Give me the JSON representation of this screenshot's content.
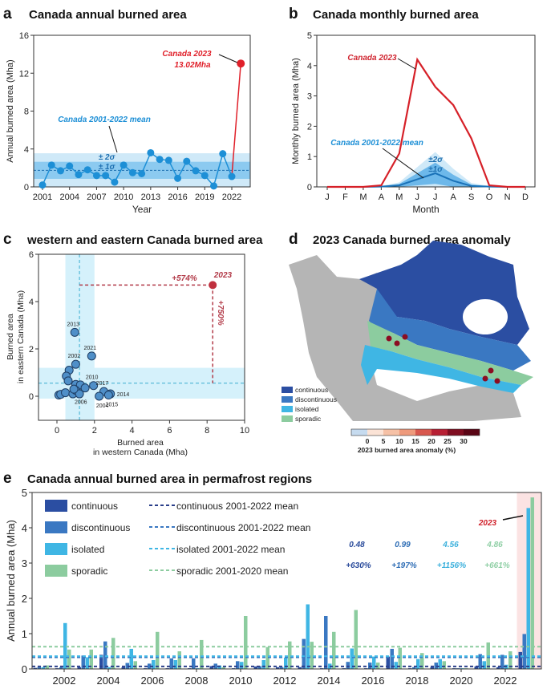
{
  "colors": {
    "red": "#e0202a",
    "blue": "#1d8fd6",
    "darkred": "#b23a48",
    "continuous": "#2b4ea2",
    "discontinuous": "#3a78c2",
    "isolated": "#3fb6e4",
    "sporadic": "#8ccc9f",
    "land": "#b5b5b5"
  },
  "panel_a": {
    "letter": "a",
    "title": "Canada annual burned area",
    "ann_2023": "Canada 2023",
    "ann_value": "13.02Mha",
    "ann_mean": "Canada 2001-2022 mean",
    "ann_2s": "± 2σ",
    "ann_1s": "± 1σ"
  },
  "panel_b": {
    "letter": "b",
    "title": "Canada monthly burned area",
    "ann_2023": "Canada 2023",
    "ann_mean": "Canada 2001-2022 mean",
    "ann_2s": "±2σ",
    "ann_1s": "±1σ"
  },
  "panel_c": {
    "letter": "c",
    "title": "western and eastern Canada burned area",
    "ann_x": "+574%",
    "ann_y": "+750%",
    "ann_2023": "2023"
  },
  "panel_d": {
    "letter": "d",
    "title": "2023 Canada burned area anomaly",
    "legend": [
      "continuous",
      "discontinuous",
      "isolated",
      "sporadic"
    ],
    "colorbar_label": "2023 burned area anomaly (%)",
    "colorbar_ticks": [
      "0",
      "5",
      "10",
      "15",
      "20",
      "25",
      "30"
    ],
    "colorbar_colors": [
      "#c6dbef",
      "#fbe3d6",
      "#f6c1a6",
      "#ee9a7c",
      "#d8574e",
      "#b71f33",
      "#7f0d20",
      "#5a0515"
    ]
  },
  "panel_e": {
    "letter": "e",
    "title": "Canada annual burned area in permafrost regions",
    "tag_2023": "2023",
    "highlight": [
      {
        "value": "0.48",
        "pct": "+630%"
      },
      {
        "value": "0.99",
        "pct": "+197%"
      },
      {
        "value": "4.56",
        "pct": "+1156%"
      },
      {
        "value": "4.86",
        "pct": "+661%"
      }
    ]
  },
  "chart_data": [
    {
      "type": "line",
      "title": "Canada annual burned area",
      "xlabel": "Year",
      "ylabel": "Annual burned area (Mha)",
      "ylim": [
        0,
        16
      ],
      "yticks": [
        "0",
        "4",
        "8",
        "12",
        "16"
      ],
      "xticks": [
        "2001",
        "2004",
        "2007",
        "2010",
        "2013",
        "2016",
        "2019",
        "2022"
      ],
      "x": [
        2001,
        2002,
        2003,
        2004,
        2005,
        2006,
        2007,
        2008,
        2009,
        2010,
        2011,
        2012,
        2013,
        2014,
        2015,
        2016,
        2017,
        2018,
        2019,
        2020,
        2021,
        2022,
        2023
      ],
      "values": [
        0.2,
        2.3,
        1.7,
        2.2,
        1.3,
        1.8,
        1.2,
        1.2,
        0.5,
        2.3,
        1.5,
        1.4,
        3.6,
        2.9,
        2.8,
        0.9,
        2.7,
        1.7,
        1.2,
        0.1,
        3.5,
        1.1,
        13.02
      ],
      "mean": 1.75,
      "sigma": 0.9
    },
    {
      "type": "line",
      "title": "Canada monthly burned area",
      "xlabel": "Month",
      "ylabel": "Monthly burned area (Mha)",
      "ylim": [
        0,
        5
      ],
      "yticks": [
        "0",
        "1",
        "2",
        "3",
        "4",
        "5"
      ],
      "categories": [
        "J",
        "F",
        "M",
        "A",
        "M",
        "J",
        "J",
        "A",
        "S",
        "O",
        "N",
        "D"
      ],
      "series": [
        {
          "name": "Canada 2023",
          "values": [
            0,
            0,
            0,
            0.05,
            1.1,
            4.2,
            3.3,
            2.7,
            1.6,
            0.05,
            0,
            0
          ]
        },
        {
          "name": "Canada 2001-2022 mean",
          "values": [
            0,
            0,
            0,
            0.01,
            0.05,
            0.25,
            0.45,
            0.2,
            0.03,
            0.01,
            0,
            0
          ],
          "sigma": [
            0,
            0,
            0,
            0.01,
            0.05,
            0.2,
            0.35,
            0.2,
            0.05,
            0.01,
            0,
            0
          ]
        }
      ]
    },
    {
      "type": "scatter",
      "title": "western and eastern Canada burned area",
      "xlabel": "Burned area in western Canada (Mha)",
      "ylabel": "Burned area in eastern Canada (Mha)",
      "xlim": [
        -1,
        10
      ],
      "ylim": [
        -1,
        6
      ],
      "xticks": [
        "0",
        "2",
        "4",
        "6",
        "8",
        "10"
      ],
      "yticks": [
        "0",
        "2",
        "4",
        "6"
      ],
      "points": [
        {
          "x": 0.95,
          "y": 2.7,
          "label": "2013"
        },
        {
          "x": 1.85,
          "y": 1.7,
          "label": "2021"
        },
        {
          "x": 1.0,
          "y": 1.35,
          "label": "2002"
        },
        {
          "x": 0.65,
          "y": 1.1
        },
        {
          "x": 0.5,
          "y": 0.85
        },
        {
          "x": 0.6,
          "y": 0.65
        },
        {
          "x": 1.0,
          "y": 0.5
        },
        {
          "x": 1.95,
          "y": 0.45,
          "label": "2010"
        },
        {
          "x": 1.25,
          "y": 0.48
        },
        {
          "x": 1.5,
          "y": 0.35
        },
        {
          "x": 2.5,
          "y": 0.2,
          "label": "2017"
        },
        {
          "x": 2.85,
          "y": 0.1,
          "label": "2014"
        },
        {
          "x": 2.25,
          "y": 0.0,
          "label": "2004"
        },
        {
          "x": 2.75,
          "y": 0.05,
          "label": "2015"
        },
        {
          "x": 1.1,
          "y": 0.15,
          "label": "2006"
        },
        {
          "x": 0.1,
          "y": 0.05
        },
        {
          "x": 0.2,
          "y": 0.08
        },
        {
          "x": 0.45,
          "y": 0.15
        },
        {
          "x": 0.85,
          "y": 0.1
        },
        {
          "x": 1.0,
          "y": 0.25
        },
        {
          "x": 1.2,
          "y": 0.1
        },
        {
          "x": 0.9,
          "y": 0.3
        }
      ],
      "point_2023": {
        "x": 8.3,
        "y": 4.7,
        "label": "2023"
      },
      "mean_x": 1.2,
      "mean_y": 0.55,
      "band_x": [
        0.45,
        2.0
      ],
      "band_y": [
        -0.1,
        1.2
      ]
    },
    {
      "type": "bar",
      "title": "Canada annual burned area in permafrost regions",
      "ylabel": "Annual burned area (Mha)",
      "ylim": [
        0,
        5
      ],
      "yticks": [
        "0",
        "1",
        "2",
        "3",
        "4",
        "5"
      ],
      "xticks": [
        "2002",
        "2004",
        "2006",
        "2008",
        "2010",
        "2012",
        "2014",
        "2016",
        "2018",
        "2020",
        "2022"
      ],
      "categories": [
        2001,
        2002,
        2003,
        2004,
        2005,
        2006,
        2007,
        2008,
        2009,
        2010,
        2011,
        2012,
        2013,
        2014,
        2015,
        2016,
        2017,
        2018,
        2019,
        2020,
        2021,
        2022,
        2023
      ],
      "series": [
        {
          "name": "continuous",
          "values": [
            0.03,
            0.02,
            0.05,
            0.4,
            0.05,
            0.02,
            0.02,
            0.02,
            0.08,
            0.02,
            0.07,
            0.05,
            0.05,
            0.02,
            0.02,
            0.02,
            0.35,
            0.02,
            0.05,
            0.02,
            0.07,
            0.05,
            0.48
          ],
          "mean": 0.07,
          "mean_label": "continuous 2001-2022 mean"
        },
        {
          "name": "discontinuous",
          "values": [
            0.05,
            0.05,
            0.38,
            0.78,
            0.17,
            0.15,
            0.3,
            0.3,
            0.15,
            0.22,
            0.08,
            0.05,
            0.85,
            1.5,
            0.2,
            0.18,
            0.57,
            0.05,
            0.18,
            0.02,
            0.42,
            0.4,
            0.99
          ],
          "mean": 0.33,
          "mean_label": "discontinuous 2001-2022 mean"
        },
        {
          "name": "isolated",
          "values": [
            0.05,
            1.3,
            0.33,
            0.05,
            0.57,
            0.25,
            0.25,
            0.02,
            0.1,
            0.2,
            0.25,
            0.32,
            1.83,
            0.15,
            0.58,
            0.35,
            0.2,
            0.28,
            0.28,
            0.02,
            0.22,
            0.12,
            4.56
          ],
          "mean": 0.36,
          "mean_label": "isolated 2001-2022 mean"
        },
        {
          "name": "sporadic",
          "values": [
            0.1,
            0.55,
            0.55,
            0.88,
            0.22,
            1.05,
            0.5,
            0.82,
            0.05,
            1.5,
            0.62,
            0.78,
            0.77,
            1.05,
            1.67,
            0.18,
            0.6,
            0.45,
            0.22,
            0.02,
            0.75,
            0.5,
            4.86
          ],
          "mean": 0.63,
          "mean_label": "sporadic 2001-2020 mean"
        }
      ]
    }
  ]
}
